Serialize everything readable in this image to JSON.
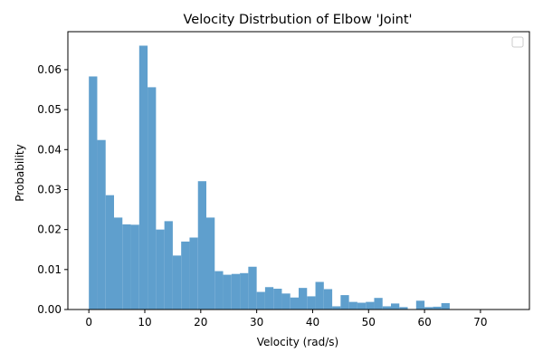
{
  "chart_data": {
    "type": "bar",
    "title": "Velocity Distrbution of Elbow 'Joint'",
    "xlabel": "Velocity (rad/s)",
    "ylabel": "Probability",
    "xlim": [
      -3.75,
      78.75
    ],
    "ylim": [
      0.0,
      0.0695
    ],
    "x_ticks": [
      0,
      10,
      20,
      30,
      40,
      50,
      60,
      70
    ],
    "y_ticks": [
      0.0,
      0.01,
      0.02,
      0.03,
      0.04,
      0.05,
      0.06
    ],
    "y_tick_labels": [
      "0.00",
      "0.01",
      "0.02",
      "0.03",
      "0.04",
      "0.05",
      "0.06"
    ],
    "bin_width": 1.5,
    "bin_start": 0.0,
    "values": [
      0.0583,
      0.0424,
      0.0286,
      0.023,
      0.0213,
      0.0212,
      0.066,
      0.0556,
      0.02,
      0.0221,
      0.0135,
      0.017,
      0.018,
      0.0321,
      0.023,
      0.0096,
      0.0087,
      0.0089,
      0.0091,
      0.0107,
      0.0044,
      0.0056,
      0.0052,
      0.004,
      0.003,
      0.0054,
      0.0033,
      0.0069,
      0.0051,
      0.0008,
      0.0036,
      0.0019,
      0.0017,
      0.0019,
      0.0029,
      0.0008,
      0.0015,
      0.0006,
      0.0,
      0.0022,
      0.0006,
      0.0007,
      0.0016,
      0.0
    ],
    "bar_color": "#5f9fcd",
    "grid": false,
    "legend": {
      "position": "top-right",
      "entries": []
    }
  }
}
